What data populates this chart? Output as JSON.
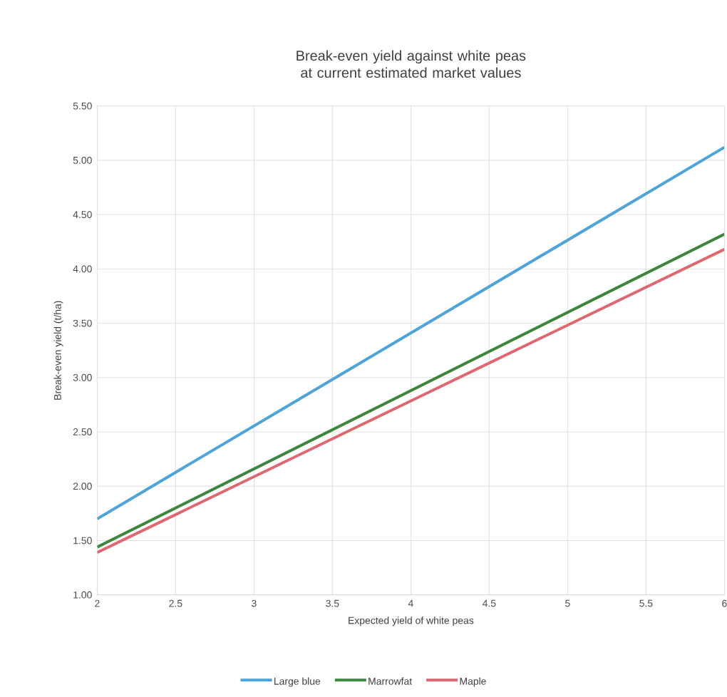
{
  "chart_data": {
    "type": "line",
    "title": "Break-even yield against white peas at current estimated market values",
    "xlabel": "Expected yield of white peas",
    "ylabel": "Break-even yield (t/ha)",
    "x": [
      2,
      6
    ],
    "series": [
      {
        "name": "Large blue",
        "color": "#4ea3d8",
        "values": [
          1.7,
          5.12
        ]
      },
      {
        "name": "Marrowfat",
        "color": "#3e8540",
        "values": [
          1.44,
          4.32
        ]
      },
      {
        "name": "Maple",
        "color": "#e06670",
        "values": [
          1.39,
          4.18
        ]
      }
    ],
    "xlim": [
      2,
      6
    ],
    "ylim": [
      1,
      5.5
    ],
    "xticks": [
      2,
      2.5,
      3,
      3.5,
      4,
      4.5,
      5,
      5.5,
      6
    ],
    "yticks": [
      {
        "value": 1,
        "label": "1.00"
      },
      {
        "value": 1.5,
        "label": "1.50"
      },
      {
        "value": 2,
        "label": "2.00"
      },
      {
        "value": 2.5,
        "label": "2.50"
      },
      {
        "value": 3,
        "label": "3.00"
      },
      {
        "value": 3.5,
        "label": "3.50"
      },
      {
        "value": 4,
        "label": "4.00"
      },
      {
        "value": 4.5,
        "label": "4.50"
      },
      {
        "value": 5,
        "label": "5.00"
      },
      {
        "value": 5.5,
        "label": "5.50"
      }
    ],
    "grid": true,
    "legend": "bottom",
    "marker": "none",
    "line_style": "solid"
  }
}
